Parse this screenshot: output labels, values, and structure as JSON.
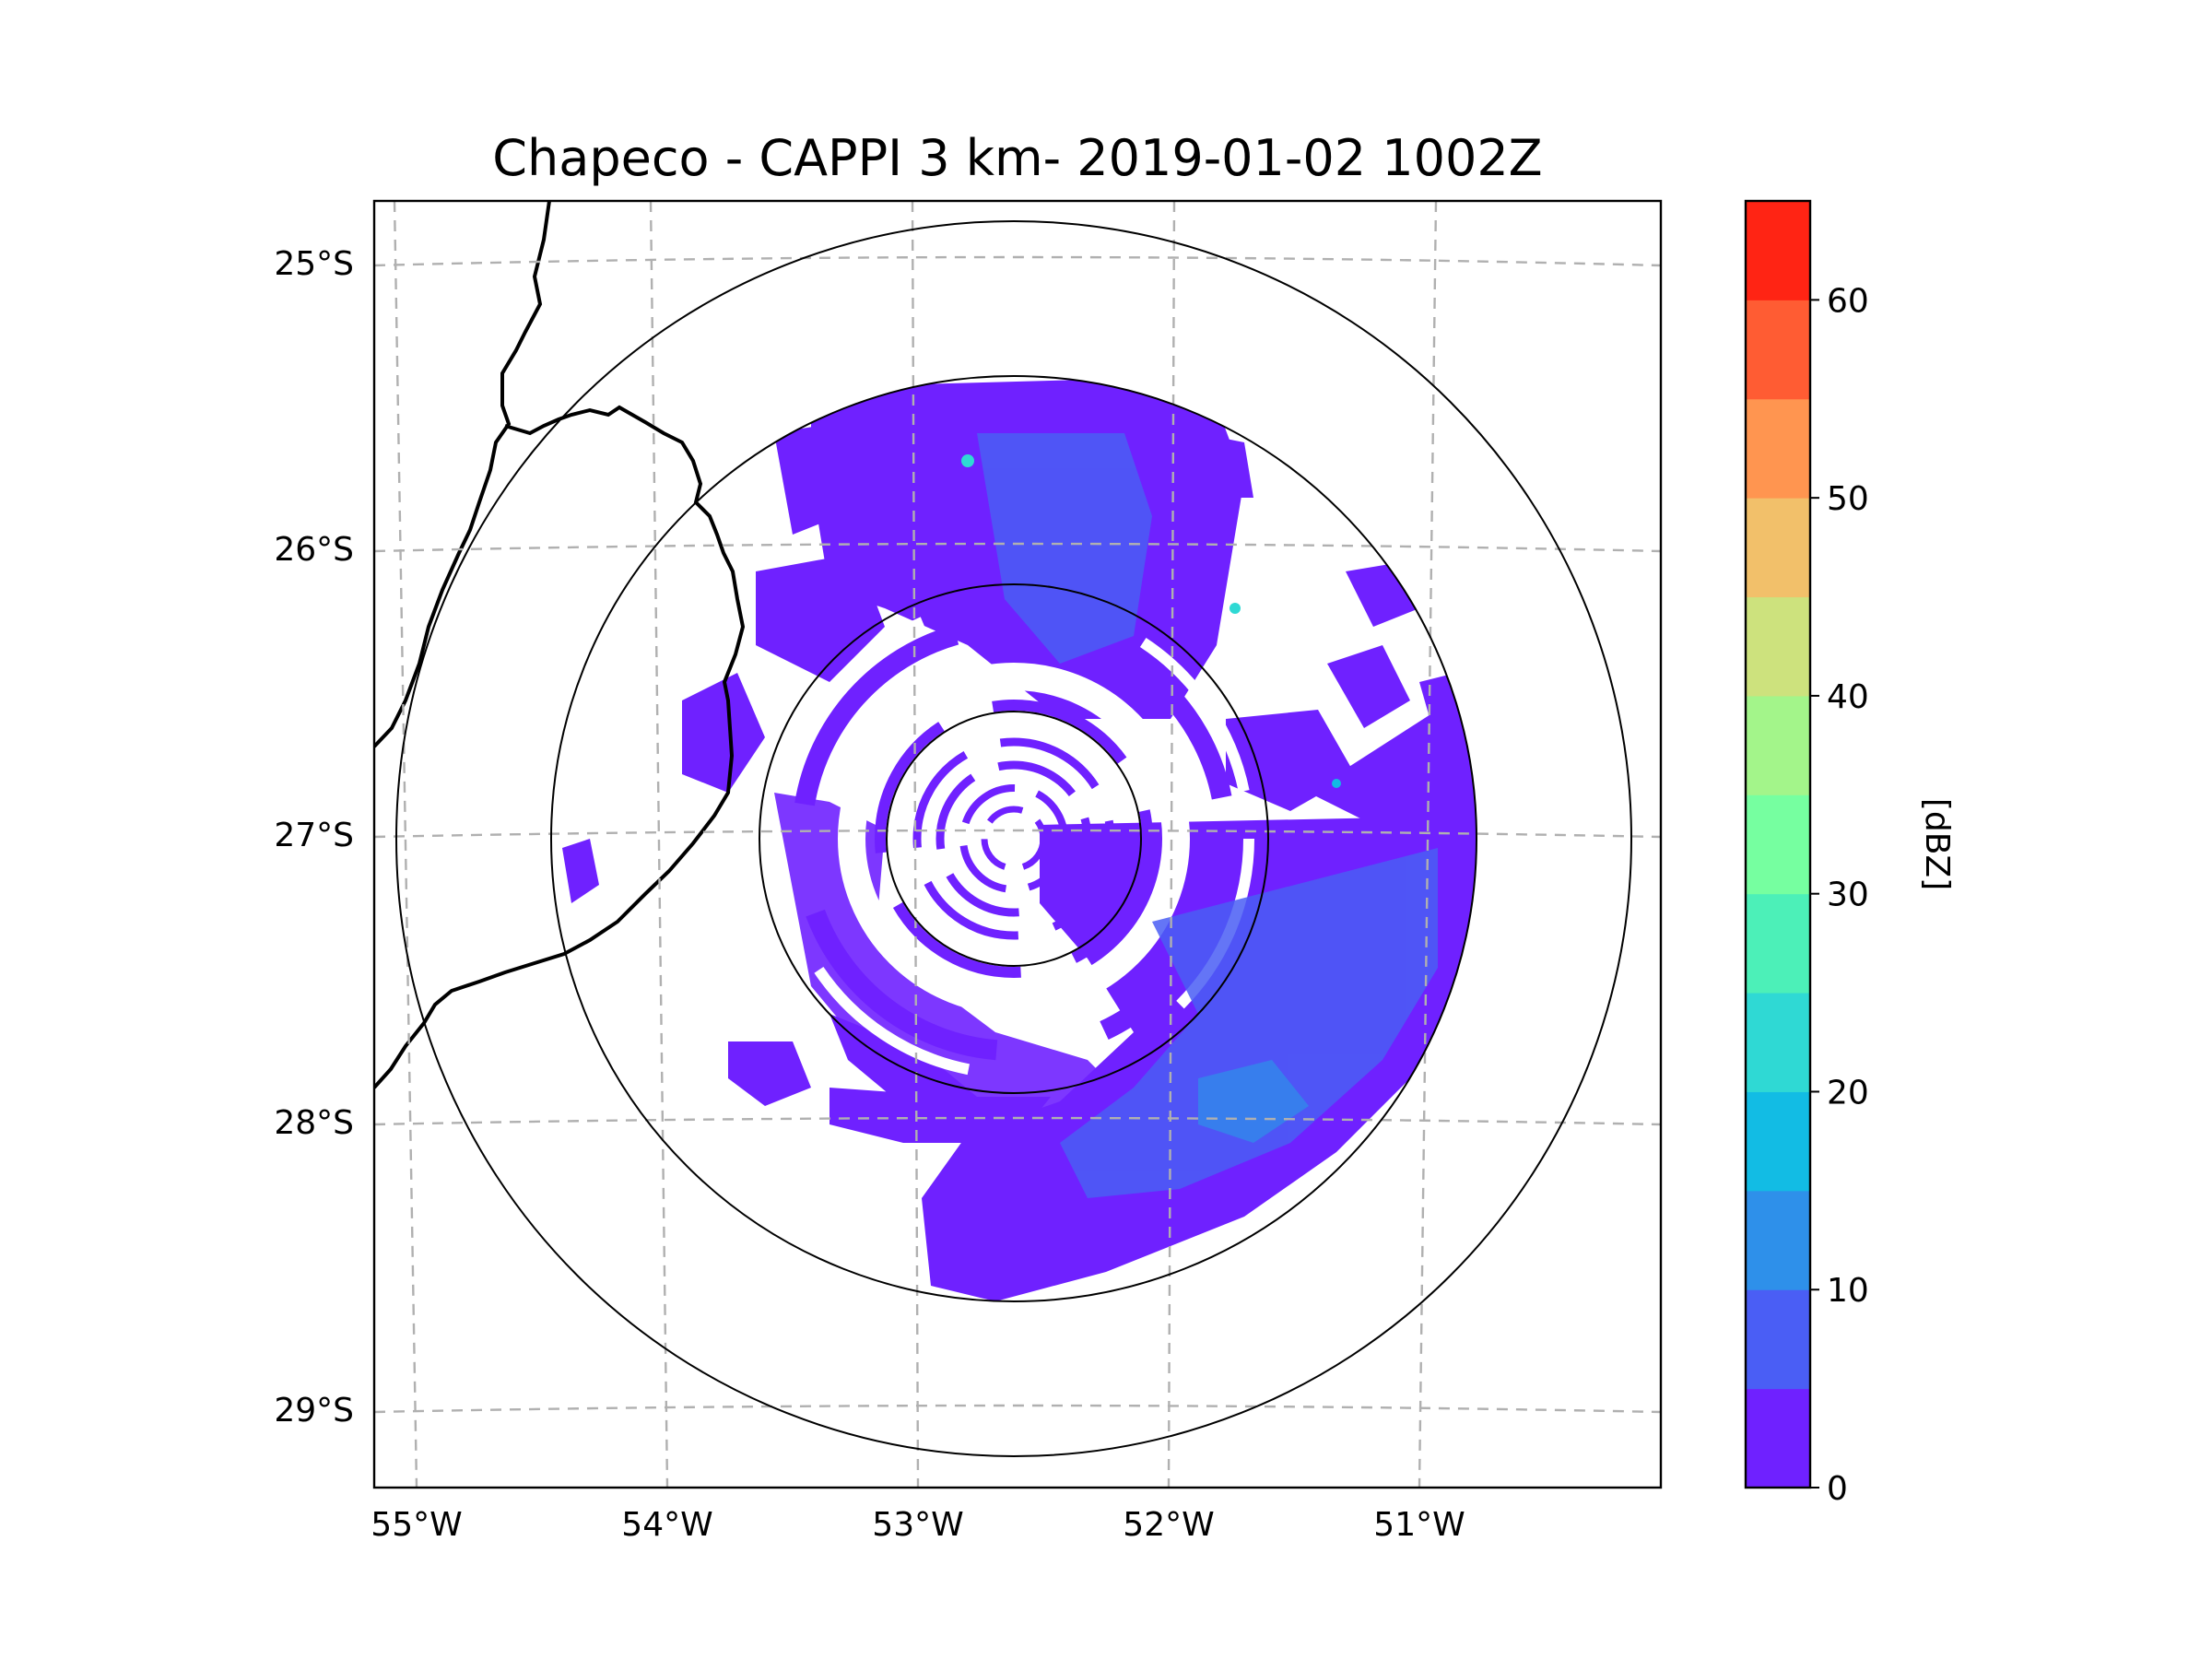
{
  "title": "Chapeco - CAPPI 3 km- 2019-01-02 1002Z",
  "lat_labels": [
    "25°S",
    "26°S",
    "27°S",
    "28°S",
    "29°S"
  ],
  "lon_labels": [
    "55°W",
    "54°W",
    "53°W",
    "52°W",
    "51°W"
  ],
  "colorbar": {
    "label": "[dBZ]",
    "ticks": [
      "0",
      "10",
      "20",
      "30",
      "40",
      "50",
      "60"
    ],
    "min": 0,
    "max": 65,
    "step": 5,
    "colors": [
      "#6f21ff",
      "#4a5ef5",
      "#2e90ea",
      "#12bce4",
      "#2fd9d4",
      "#4cf0b8",
      "#76ffa0",
      "#a3f58a",
      "#cde27d",
      "#f2c06a",
      "#ff9550",
      "#ff5c33",
      "#ff2414"
    ]
  },
  "map": {
    "radar_site": "Chapeco",
    "product": "CAPPI 3 km",
    "range_rings": 4,
    "reflectivity_main_color": "#6f21ff",
    "reflectivity_secondary_color": "#4a5ef5",
    "grid_color": "#b0b0b0",
    "border_color": "#000000"
  }
}
